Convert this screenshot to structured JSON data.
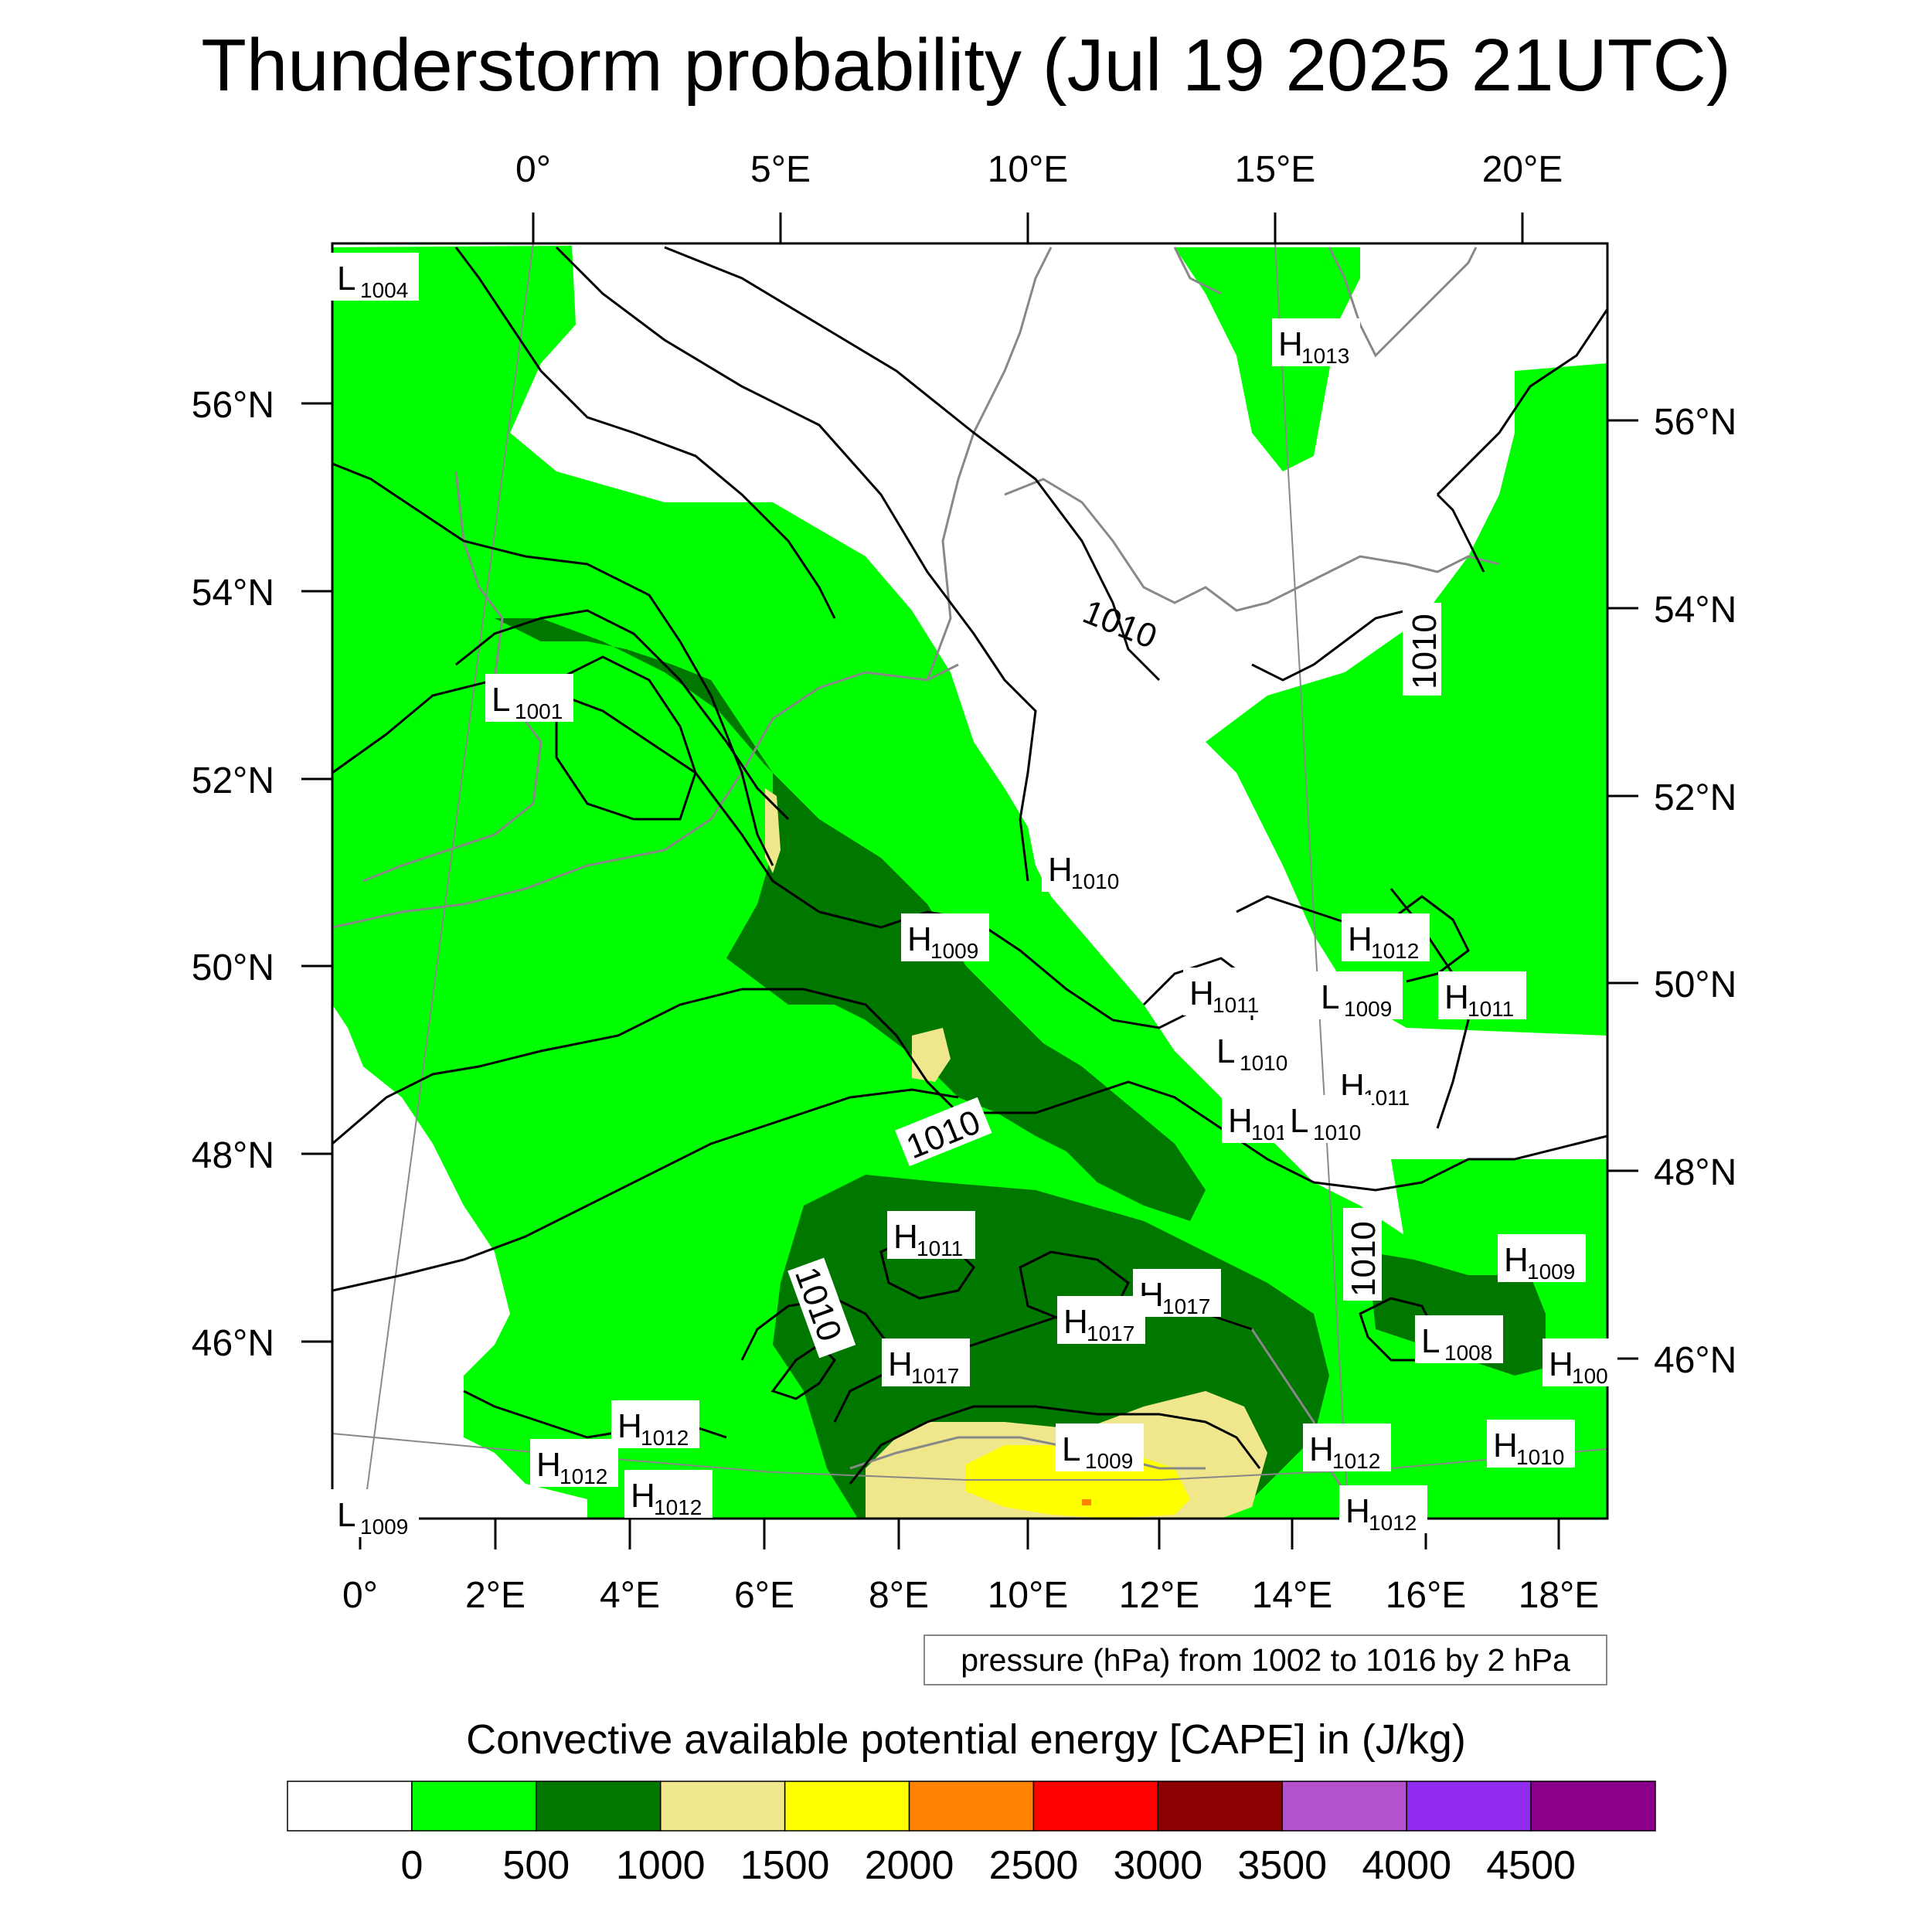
{
  "title": "Thunderstorm probability (Jul 19 2025 21UTC)",
  "map": {
    "top_lon_labels": [
      "0°",
      "5°E",
      "10°E",
      "15°E",
      "20°E"
    ],
    "bottom_lon_labels": [
      "0°",
      "2°E",
      "4°E",
      "6°E",
      "8°E",
      "10°E",
      "12°E",
      "14°E",
      "16°E",
      "18°E"
    ],
    "left_lat_labels": [
      "56°N",
      "54°N",
      "52°N",
      "50°N",
      "48°N",
      "46°N"
    ],
    "right_lat_labels": [
      "56°N",
      "54°N",
      "52°N",
      "50°N",
      "48°N",
      "46°N"
    ],
    "pressure_centers": [
      {
        "type": "L",
        "value": "1004"
      },
      {
        "type": "H",
        "value": "1013"
      },
      {
        "type": "L",
        "value": "1001"
      },
      {
        "type": "H",
        "value": "1010"
      },
      {
        "type": "H",
        "value": "1009"
      },
      {
        "type": "H",
        "value": "1012"
      },
      {
        "type": "H",
        "value": "1011"
      },
      {
        "type": "L",
        "value": "1009"
      },
      {
        "type": "H",
        "value": "1011"
      },
      {
        "type": "L",
        "value": "1010"
      },
      {
        "type": "H",
        "value": "1011"
      },
      {
        "type": "H",
        "value": "101"
      },
      {
        "type": "L",
        "value": "1010"
      },
      {
        "type": "H",
        "value": "1011"
      },
      {
        "type": "H",
        "value": "1009"
      },
      {
        "type": "H",
        "value": "1017"
      },
      {
        "type": "H",
        "value": "1017"
      },
      {
        "type": "H",
        "value": "1017"
      },
      {
        "type": "L",
        "value": "1008"
      },
      {
        "type": "H",
        "value": "100"
      },
      {
        "type": "H",
        "value": "1012"
      },
      {
        "type": "H",
        "value": "1012"
      },
      {
        "type": "H",
        "value": "1012"
      },
      {
        "type": "L",
        "value": "1009"
      },
      {
        "type": "H",
        "value": "1012"
      },
      {
        "type": "H",
        "value": "1010"
      },
      {
        "type": "H",
        "value": "1012"
      },
      {
        "type": "L",
        "value": "1009"
      }
    ],
    "isobar_labels": [
      "1010",
      "1010",
      "1010",
      "1010",
      "1010"
    ]
  },
  "pressure_note": "pressure (hPa) from 1002 to 1016 by 2 hPa",
  "colorbar": {
    "title": "Convective available potential energy [CAPE] in (J/kg)",
    "colors": [
      "#ffffff",
      "#00ff00",
      "#007800",
      "#f0e68c",
      "#ffff00",
      "#ff8200",
      "#ff0000",
      "#8b0000",
      "#b452cd",
      "#912cee",
      "#8b008b"
    ],
    "labels": [
      "0",
      "500",
      "1000",
      "1500",
      "2000",
      "2500",
      "3000",
      "3500",
      "4000",
      "4500"
    ]
  },
  "colors": {
    "low_cape": "#00ff00",
    "mid_cape": "#007800",
    "high_cape": "#f0e68c",
    "very_high_cape": "#ffff00",
    "coastline": "#888888",
    "isobar": "#000000"
  }
}
